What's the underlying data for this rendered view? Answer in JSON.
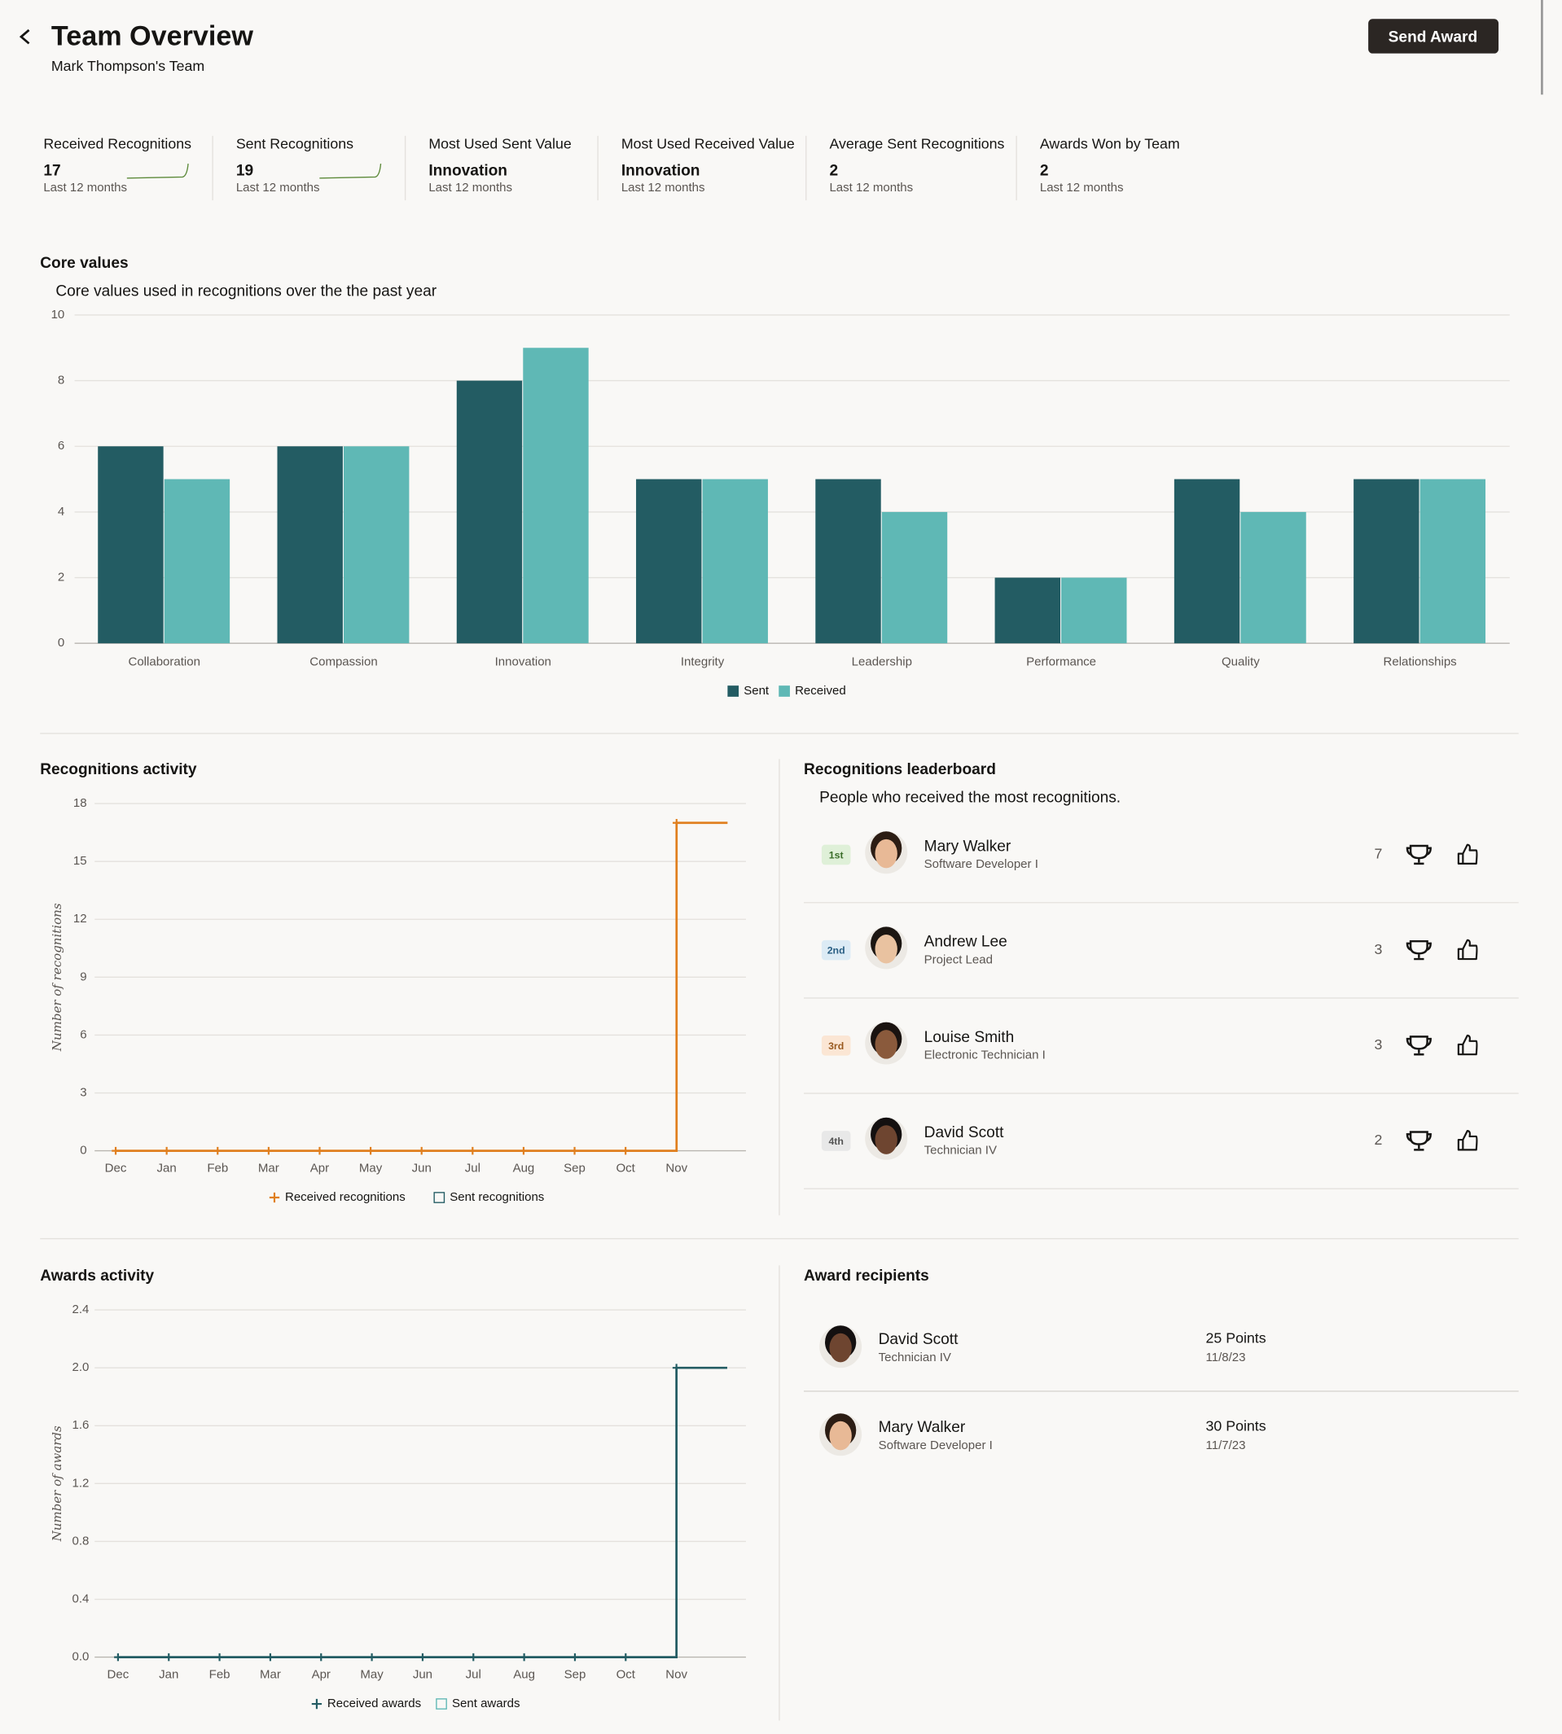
{
  "header": {
    "title": "Team Overview",
    "subtitle": "Mark Thompson's Team",
    "button": "Send Award"
  },
  "kpis": [
    {
      "label": "Received Recognitions",
      "value": "17",
      "sub": "Last 12 months"
    },
    {
      "label": "Sent Recognitions",
      "value": "19",
      "sub": "Last 12 months"
    },
    {
      "label": "Most Used Sent Value",
      "value": "Innovation",
      "sub": "Last 12 months"
    },
    {
      "label": "Most Used Received Value",
      "value": "Innovation",
      "sub": "Last 12 months"
    },
    {
      "label": "Average Sent Recognitions",
      "value": "2",
      "sub": "Last 12 months"
    },
    {
      "label": "Awards Won by Team",
      "value": "2",
      "sub": "Last 12 months"
    }
  ],
  "chart_data": [
    {
      "type": "bar",
      "title": "Core values",
      "subtitle": "Core values used in recognitions over the the past year",
      "categories": [
        "Collaboration",
        "Compassion",
        "Innovation",
        "Integrity",
        "Leadership",
        "Performance",
        "Quality",
        "Relationships"
      ],
      "series": [
        {
          "name": "Sent",
          "color": "#235c63",
          "values": [
            6,
            6,
            8,
            5,
            5,
            2,
            5,
            5
          ]
        },
        {
          "name": "Received",
          "color": "#5fb8b5",
          "values": [
            5,
            6,
            9,
            5,
            4,
            2,
            4,
            5
          ]
        }
      ],
      "ylim": [
        0,
        10
      ],
      "yticks": [
        0,
        2,
        4,
        6,
        8,
        10
      ],
      "grid": true,
      "legend": "bottom"
    },
    {
      "type": "line",
      "title": "Recognitions activity",
      "ylabel": "Number of recognitions",
      "categories": [
        "Dec",
        "Jan",
        "Feb",
        "Mar",
        "Apr",
        "May",
        "Jun",
        "Jul",
        "Aug",
        "Sep",
        "Oct",
        "Nov"
      ],
      "series": [
        {
          "name": "Received recognitions",
          "color": "#e07f1e",
          "values": [
            0,
            0,
            0,
            0,
            0,
            0,
            0,
            0,
            0,
            0,
            0,
            17
          ]
        },
        {
          "name": "Sent recognitions",
          "color": "#235c63",
          "visible": false
        }
      ],
      "ylim": [
        0,
        18
      ],
      "yticks": [
        0,
        3,
        6,
        9,
        12,
        15,
        18
      ],
      "grid": true,
      "legend": "bottom",
      "step": true
    },
    {
      "type": "line",
      "title": "Awards activity",
      "ylabel": "Number of awards",
      "categories": [
        "Dec",
        "Jan",
        "Feb",
        "Mar",
        "Apr",
        "May",
        "Jun",
        "Jul",
        "Aug",
        "Sep",
        "Oct",
        "Nov"
      ],
      "series": [
        {
          "name": "Received awards",
          "color": "#235c63",
          "values": [
            0,
            0,
            0,
            0,
            0,
            0,
            0,
            0,
            0,
            0,
            0,
            2
          ]
        },
        {
          "name": "Sent awards",
          "color": "#5fb8b5",
          "visible": false
        }
      ],
      "ylim": [
        0,
        2.4
      ],
      "yticks": [
        {
          "value": 0,
          "label": "0.0"
        },
        0.4,
        0.8,
        1.2,
        1.6,
        {
          "value": 2,
          "label": "2.0"
        },
        2.4
      ],
      "grid": true,
      "legend": "bottom",
      "step": true
    }
  ],
  "leaderboard": {
    "title": "Recognitions leaderboard",
    "subtitle": "People who received the most recognitions.",
    "rows": [
      {
        "rank": "1st",
        "name": "Mary Walker",
        "role": "Software Developer I",
        "count": 7
      },
      {
        "rank": "2nd",
        "name": "Andrew Lee",
        "role": "Project Lead",
        "count": 3
      },
      {
        "rank": "3rd",
        "name": "Louise Smith",
        "role": "Electronic Technician I",
        "count": 3
      },
      {
        "rank": "4th",
        "name": "David Scott",
        "role": "Technician IV",
        "count": 2
      }
    ]
  },
  "recipients": {
    "title": "Award recipients",
    "rows": [
      {
        "name": "David Scott",
        "role": "Technician IV",
        "points": "25 Points",
        "date": "11/8/23"
      },
      {
        "name": "Mary Walker",
        "role": "Software Developer I",
        "points": "30 Points",
        "date": "11/7/23"
      }
    ]
  }
}
